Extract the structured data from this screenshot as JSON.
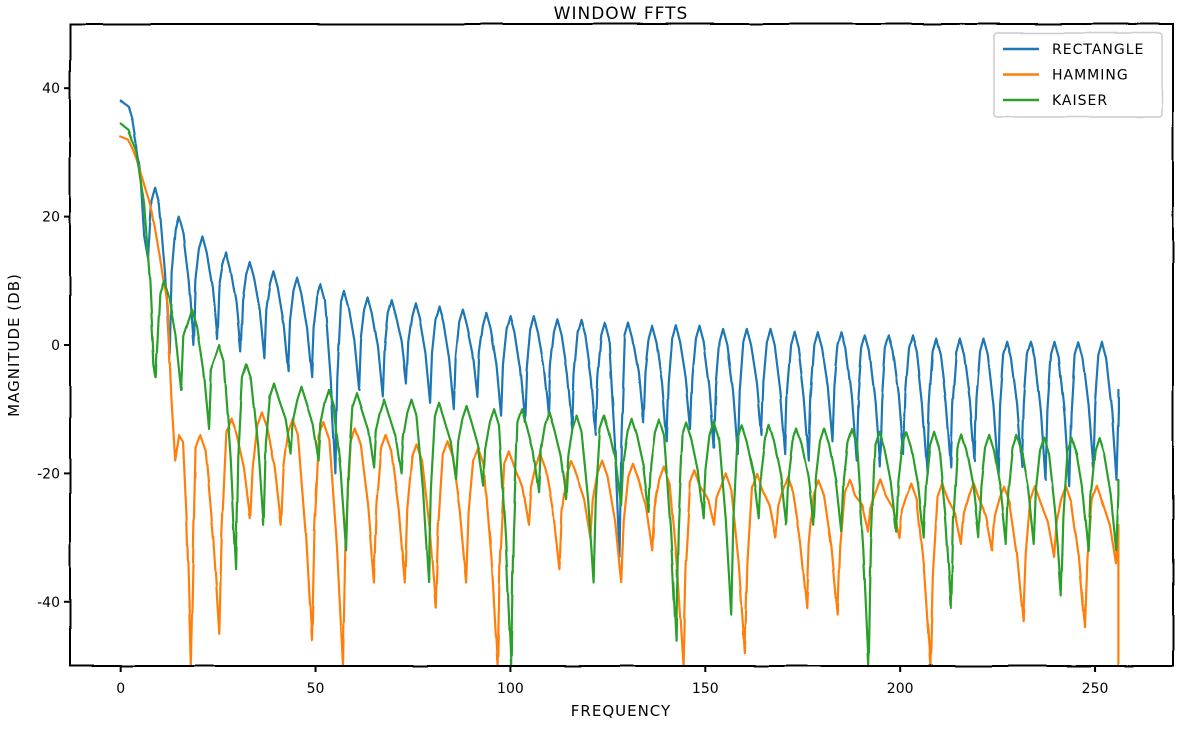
{
  "chart_data": {
    "type": "line",
    "title": "WINDOW FFTS",
    "xlabel": "FREQUENCY",
    "ylabel": "MAGNITUDE (DB)",
    "xlim": [
      -13,
      270
    ],
    "ylim": [
      -50,
      50
    ],
    "xticks": [
      0,
      50,
      100,
      150,
      200,
      250
    ],
    "yticks": [
      -40,
      -20,
      0,
      20,
      40
    ],
    "grid": false,
    "legend_position": "top-right",
    "x_end": 256,
    "series": [
      {
        "name": "RECTANGLE",
        "color": "#1f77b4",
        "main_lobe": [
          [
            0,
            38
          ],
          [
            2,
            37
          ],
          [
            3,
            35
          ],
          [
            5,
            27
          ],
          [
            6,
            17
          ],
          [
            7,
            13.5
          ]
        ],
        "lobe_peaks": [
          24.5,
          20,
          17,
          14.5,
          13,
          11.5,
          10.5,
          9.5,
          8.5,
          7.5,
          7,
          6.5,
          6,
          5.5,
          5,
          4.5,
          4.5,
          4,
          4,
          3.5,
          3.5,
          3,
          3,
          3,
          2.5,
          2.5,
          2.5,
          2,
          2,
          2,
          1.5,
          1.5,
          1.5,
          1,
          1,
          1,
          0.5,
          0.5,
          0.5,
          0.5,
          0.5
        ],
        "null_floors": [
          -2,
          0,
          1,
          -1,
          -2,
          -4,
          -5,
          -20,
          -7,
          -8,
          -6,
          -9,
          -10,
          -8,
          -11,
          -12,
          -11,
          -13,
          -14,
          -33,
          -12,
          -15,
          -13,
          -16,
          -17,
          -14,
          -17,
          -18,
          -15,
          -18,
          -19,
          -17,
          -20,
          -19,
          -18,
          -20,
          -19,
          -21,
          -22,
          -19,
          -21
        ],
        "tail_end": -7
      },
      {
        "name": "HAMMING",
        "color": "#ff7f0e",
        "main_lobe": [
          [
            0,
            32.5
          ],
          [
            2,
            32
          ],
          [
            4,
            29
          ],
          [
            6,
            25
          ],
          [
            8,
            21
          ],
          [
            10,
            14
          ],
          [
            12,
            6
          ],
          [
            13,
            -8
          ],
          [
            14,
            -18
          ],
          [
            15,
            -14
          ],
          [
            16,
            -15
          ],
          [
            17,
            -28
          ],
          [
            18,
            -50
          ]
        ],
        "lobe_peaks": [
          -14,
          -11.5,
          -10.5,
          -11.5,
          -12,
          -13,
          -14,
          -15.5,
          -15,
          -16,
          -16.5,
          -17,
          -18,
          -18,
          -18.5,
          -19,
          -19.5,
          -20,
          -20,
          -20.5,
          -21,
          -21,
          -21,
          -21.5,
          -21.5,
          -21.5,
          -22,
          -22,
          -22,
          -22
        ],
        "null_floors": [
          -45,
          -27,
          -28,
          -46,
          -50,
          -37,
          -37,
          -41,
          -37,
          -50,
          -28,
          -35,
          -30,
          -37,
          -32,
          -50,
          -28,
          -48,
          -30,
          -41,
          -42,
          -29,
          -30,
          -50,
          -31,
          -32,
          -43,
          -33,
          -44,
          -34
        ],
        "tail_end": -50
      },
      {
        "name": "KAISER",
        "color": "#2ca02c",
        "main_lobe": [
          [
            0,
            34.5
          ],
          [
            2,
            33.5
          ],
          [
            4,
            30
          ],
          [
            6,
            22
          ],
          [
            7.5,
            10
          ],
          [
            8.5,
            -3
          ],
          [
            9,
            -5
          ]
        ],
        "lobe_peaks": [
          10,
          5.5,
          0,
          -3,
          -6,
          -6.5,
          -7,
          -7.5,
          -8.5,
          -8.5,
          -9,
          -9.5,
          -10,
          -10,
          -10.5,
          -11,
          -11,
          -11.5,
          -11.5,
          -12,
          -12,
          -12.5,
          -12.5,
          -13,
          -13,
          -13,
          -13.5,
          -13.5,
          -13.5,
          -14,
          -14,
          -14,
          -14.5,
          -14.5,
          -14.5
        ],
        "null_floors": [
          -7,
          -13,
          -35,
          -28,
          -17,
          -18,
          -32,
          -19,
          -20,
          -37,
          -21,
          -22,
          -50,
          -23,
          -24,
          -37,
          -25,
          -26,
          -46,
          -27,
          -42,
          -27,
          -28,
          -28,
          -29,
          -50,
          -29,
          -30,
          -41,
          -30,
          -31,
          -31,
          -39,
          -32,
          -32
        ],
        "tail_end": -21
      }
    ]
  }
}
